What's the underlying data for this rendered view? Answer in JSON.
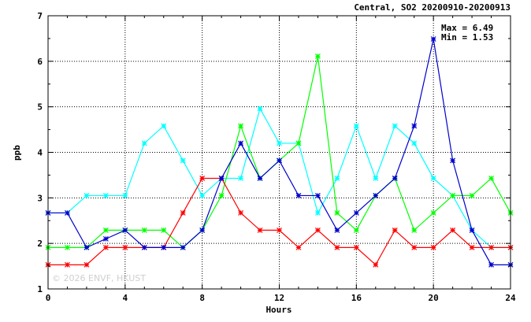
{
  "chart_data": {
    "type": "line",
    "title": "Central, SO2 20200910-20200913",
    "xlabel": "Hours",
    "ylabel": "ppb",
    "xlim": [
      0,
      24
    ],
    "ylim": [
      1,
      7
    ],
    "xticks": [
      0,
      4,
      8,
      12,
      16,
      20,
      24
    ],
    "yticks": [
      1,
      2,
      3,
      4,
      5,
      6,
      7
    ],
    "grid": true,
    "stats": {
      "max": "Max = 6.49",
      "min": "Min = 1.53"
    },
    "watermark": "© 2026 ENVF, HKUST",
    "x": [
      0,
      1,
      2,
      3,
      4,
      5,
      6,
      7,
      8,
      9,
      10,
      11,
      12,
      13,
      14,
      15,
      16,
      17,
      18,
      19,
      20,
      21,
      22,
      23,
      24
    ],
    "series": [
      {
        "color": "#00ffff",
        "values": [
          2.67,
          2.67,
          3.05,
          3.05,
          3.05,
          4.2,
          4.58,
          3.82,
          3.05,
          3.43,
          3.43,
          4.96,
          4.2,
          4.2,
          2.67,
          3.43,
          4.58,
          3.43,
          4.58,
          4.2,
          3.43,
          3.05,
          2.29,
          1.91,
          1.91
        ]
      },
      {
        "color": "#00ff00",
        "values": [
          1.91,
          1.91,
          1.91,
          2.29,
          2.29,
          2.29,
          2.29,
          1.91,
          2.29,
          3.05,
          4.58,
          3.43,
          3.82,
          4.2,
          6.11,
          2.67,
          2.29,
          3.05,
          3.43,
          2.29,
          2.67,
          3.05,
          3.05,
          3.43,
          2.67
        ]
      },
      {
        "color": "#ff0000",
        "values": [
          1.53,
          1.53,
          1.53,
          1.91,
          1.91,
          1.91,
          1.91,
          2.67,
          3.43,
          3.43,
          2.67,
          2.29,
          2.29,
          1.91,
          2.29,
          1.91,
          1.91,
          1.53,
          2.29,
          1.91,
          1.91,
          2.29,
          1.91,
          1.91,
          1.91
        ]
      },
      {
        "color": "#0000cc",
        "values": [
          2.67,
          2.67,
          1.91,
          2.1,
          2.29,
          1.91,
          1.91,
          1.91,
          2.29,
          3.43,
          4.2,
          3.43,
          3.82,
          3.05,
          3.05,
          2.29,
          2.67,
          3.05,
          3.43,
          4.58,
          6.49,
          3.82,
          2.29,
          1.53,
          1.53
        ]
      }
    ]
  }
}
